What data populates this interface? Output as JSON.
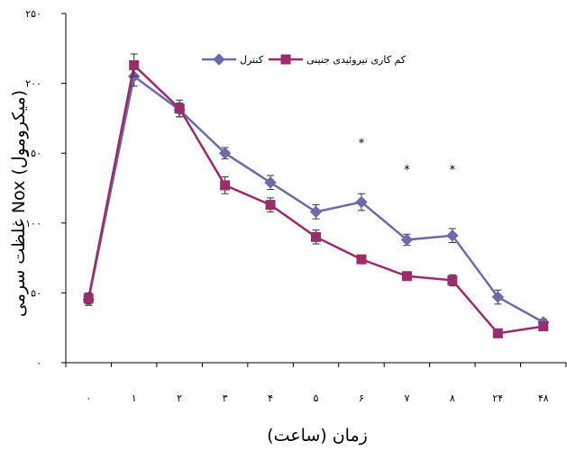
{
  "chart_data": {
    "type": "line",
    "title": "",
    "xlabel": "زمان (ساعت)",
    "ylabel": "غلظت سرمی Nox (میکرومول)",
    "categories": [
      "۰",
      "۱",
      "۲",
      "۳",
      "۴",
      "۵",
      "۶",
      "۷",
      "۸",
      "۲۴",
      "۴۸"
    ],
    "ylim": [
      0,
      250
    ],
    "yticks": [
      0,
      50,
      100,
      150,
      200,
      250
    ],
    "ytick_labels": [
      "۰",
      "۵۰",
      "۱۰۰",
      "۱۵۰",
      "۲۰۰",
      "۲۵۰"
    ],
    "grid": false,
    "legend_position": "top",
    "series": [
      {
        "name": "کنترل",
        "color": "#6B6BA8",
        "marker": "diamond",
        "values": [
          45,
          205,
          181,
          150,
          129,
          108,
          115,
          88,
          91,
          47,
          29
        ],
        "errors": [
          4,
          7,
          5,
          4,
          5,
          5,
          6,
          4,
          5,
          5,
          2
        ]
      },
      {
        "name": "کم کاری تیروئیدی جنینی",
        "color": "#9B2C6A",
        "marker": "square",
        "values": [
          46,
          213,
          182,
          127,
          113,
          90,
          74,
          62,
          59,
          21,
          26
        ],
        "errors": [
          4,
          8,
          6,
          6,
          5,
          5,
          3,
          3,
          4,
          2,
          2
        ]
      }
    ],
    "annotations": [
      {
        "category": "۶",
        "y": 160,
        "text": "*"
      },
      {
        "category": "۷",
        "y": 141,
        "text": "*"
      },
      {
        "category": "۸",
        "y": 141,
        "text": "*"
      }
    ]
  }
}
